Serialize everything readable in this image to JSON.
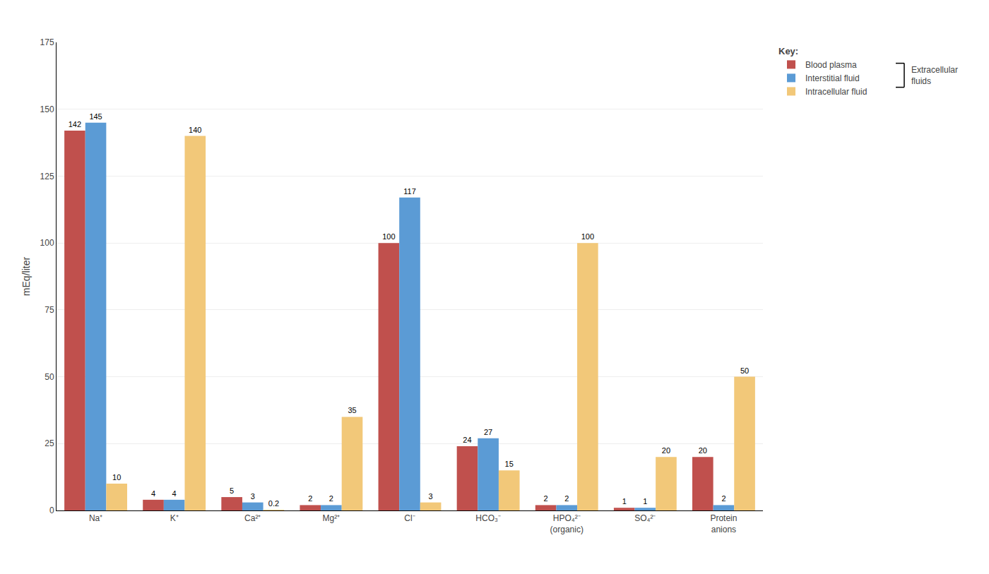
{
  "chart_data": {
    "type": "bar",
    "ylabel": "mEq/liter",
    "categories": [
      "Na⁺",
      "K⁺",
      "Ca²⁺",
      "Mg²⁺",
      "Cl⁻",
      "HCO₃⁻",
      "HPO₄²⁻\n(organic)",
      "SO₄²⁻",
      "Protein\nanions"
    ],
    "series": [
      {
        "name": "Blood plasma",
        "color": "#c0504d",
        "values": [
          142,
          4,
          5,
          2,
          100,
          24,
          2,
          1,
          20
        ]
      },
      {
        "name": "Interstitial fluid",
        "color": "#5b9bd5",
        "values": [
          145,
          4,
          3,
          2,
          117,
          27,
          2,
          1,
          2
        ]
      },
      {
        "name": "Intracellular fluid",
        "color": "#f2c879",
        "values": [
          10,
          140,
          0.2,
          35,
          3,
          15,
          100,
          20,
          50
        ]
      }
    ],
    "legend_title": "Key:",
    "annotations": [
      "Extracellular\nfluids"
    ],
    "ylim": [
      0,
      175
    ],
    "yticks": [
      0,
      25,
      50,
      75,
      100,
      125,
      150,
      175
    ],
    "grid": true,
    "legend": "upper right",
    "data_labels": true
  }
}
